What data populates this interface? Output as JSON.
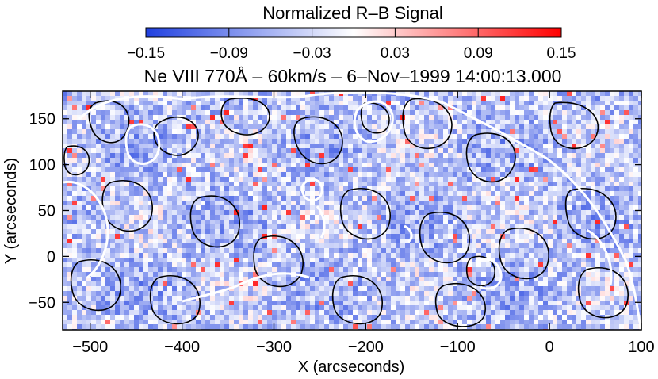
{
  "chart_data": {
    "type": "heatmap",
    "title": "Ne VIII 770Å – 60km/s –  6–Nov–1999 14:00:13.000",
    "xlabel": "X (arcseconds)",
    "ylabel": "Y (arcseconds)",
    "xlim": [
      -530,
      100
    ],
    "ylim": [
      -80,
      180
    ],
    "xticks": [
      -500,
      -400,
      -300,
      -200,
      -100,
      0,
      100
    ],
    "yticks": [
      -50,
      0,
      50,
      100,
      150
    ],
    "xtick_labels": [
      "−500",
      "−400",
      "−300",
      "−200",
      "−100",
      "0",
      "100"
    ],
    "ytick_labels": [
      "−50",
      "0",
      "50",
      "100",
      "150"
    ],
    "colorbar": {
      "label": "Normalized R–B Signal",
      "range": [
        -0.15,
        0.15
      ],
      "ticks": [
        -0.15,
        -0.09,
        -0.03,
        0.03,
        0.09,
        0.15
      ],
      "tick_labels": [
        "−0.15",
        "−0.09",
        "−0.03",
        "0.03",
        "0.09",
        "0.15"
      ],
      "colormap": [
        "#2040e0",
        "#ffffff",
        "#ff0000"
      ]
    },
    "overlays": [
      {
        "name": "black contours",
        "color": "#000000"
      },
      {
        "name": "white contours",
        "color": "#ffffff"
      }
    ]
  }
}
